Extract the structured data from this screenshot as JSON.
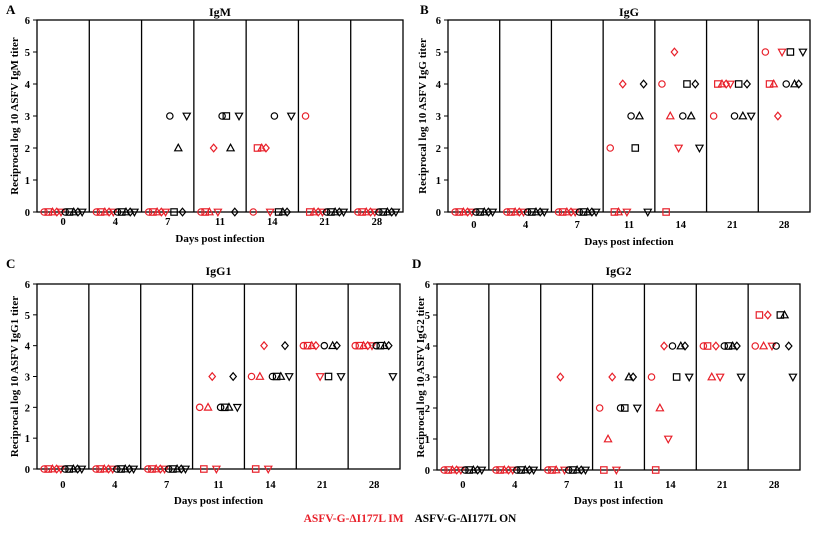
{
  "legend": {
    "im_label": "ASFV-G-ΔI177L IM",
    "on_label": "ASFV-G-ΔI177L ON",
    "im_color": "#e8202a",
    "on_color": "#000000"
  },
  "chart_data": [
    {
      "panel": "A",
      "type": "scatter",
      "title": "IgM",
      "xlabel": "Days post infection",
      "ylabel": "Reciprocal log 10 ASFV IgM titer",
      "ylim": [
        0,
        6
      ],
      "yticks": [
        0,
        1,
        2,
        3,
        4,
        5,
        6
      ],
      "categories": [
        "0",
        "4",
        "7",
        "11",
        "14",
        "21",
        "28"
      ],
      "shapes": [
        "circle",
        "square",
        "triangle-up",
        "diamond",
        "triangle-down"
      ],
      "series": [
        {
          "name": "ASFV-G-ΔI177L IM",
          "values": [
            [
              0,
              0,
              0,
              0,
              0
            ],
            [
              0,
              0,
              0,
              0,
              0
            ],
            [
              0,
              0,
              0,
              0,
              0
            ],
            [
              0,
              0,
              0,
              2,
              0
            ],
            [
              0,
              2,
              2,
              2,
              0
            ],
            [
              3,
              0,
              0,
              0,
              0
            ],
            [
              0,
              0,
              0,
              0,
              0
            ]
          ]
        },
        {
          "name": "ASFV-G-ΔI177L ON",
          "values": [
            [
              0,
              0,
              0,
              0,
              0
            ],
            [
              0,
              0,
              0,
              0,
              0
            ],
            [
              3,
              0,
              2,
              0,
              3
            ],
            [
              3,
              3,
              2,
              0,
              3
            ],
            [
              3,
              0,
              0,
              0,
              3
            ],
            [
              0,
              0,
              0,
              0,
              0
            ],
            [
              0,
              0,
              0,
              0,
              0
            ]
          ]
        }
      ]
    },
    {
      "panel": "B",
      "type": "scatter",
      "title": "IgG",
      "xlabel": "Days post infection",
      "ylabel": "Reciprocal log 10 ASFV IgG titer",
      "ylim": [
        0,
        6
      ],
      "yticks": [
        0,
        1,
        2,
        3,
        4,
        5,
        6
      ],
      "categories": [
        "0",
        "4",
        "7",
        "11",
        "14",
        "21",
        "28"
      ],
      "shapes": [
        "circle",
        "square",
        "triangle-up",
        "diamond",
        "triangle-down"
      ],
      "series": [
        {
          "name": "ASFV-G-ΔI177L IM",
          "values": [
            [
              0,
              0,
              0,
              0,
              0
            ],
            [
              0,
              0,
              0,
              0,
              0
            ],
            [
              0,
              0,
              0,
              0,
              0
            ],
            [
              2,
              0,
              0,
              4,
              0
            ],
            [
              4,
              0,
              3,
              5,
              2
            ],
            [
              3,
              4,
              4,
              4,
              4
            ],
            [
              5,
              4,
              4,
              3,
              5
            ]
          ]
        },
        {
          "name": "ASFV-G-ΔI177L ON",
          "values": [
            [
              0,
              0,
              0,
              0,
              0
            ],
            [
              0,
              0,
              0,
              0,
              0
            ],
            [
              0,
              0,
              0,
              0,
              0
            ],
            [
              3,
              2,
              3,
              4,
              0
            ],
            [
              3,
              4,
              3,
              4,
              2
            ],
            [
              3,
              4,
              3,
              4,
              3
            ],
            [
              4,
              5,
              4,
              4,
              5
            ]
          ]
        }
      ]
    },
    {
      "panel": "C",
      "type": "scatter",
      "title": "IgG1",
      "xlabel": "Days post infection",
      "ylabel": "Reciprocal log 10 ASFV IgG1 titer",
      "ylim": [
        0,
        6
      ],
      "yticks": [
        0,
        1,
        2,
        3,
        4,
        5,
        6
      ],
      "categories": [
        "0",
        "4",
        "7",
        "11",
        "14",
        "21",
        "28"
      ],
      "shapes": [
        "circle",
        "square",
        "triangle-up",
        "diamond",
        "triangle-down"
      ],
      "series": [
        {
          "name": "ASFV-G-ΔI177L IM",
          "values": [
            [
              0,
              0,
              0,
              0,
              0
            ],
            [
              0,
              0,
              0,
              0,
              0
            ],
            [
              0,
              0,
              0,
              0,
              0
            ],
            [
              2,
              0,
              2,
              3,
              0
            ],
            [
              3,
              0,
              3,
              4,
              0
            ],
            [
              4,
              4,
              4,
              4,
              3
            ],
            [
              4,
              4,
              4,
              4,
              4
            ]
          ]
        },
        {
          "name": "ASFV-G-ΔI177L ON",
          "values": [
            [
              0,
              0,
              0,
              0,
              0
            ],
            [
              0,
              0,
              0,
              0,
              0
            ],
            [
              0,
              0,
              0,
              0,
              0
            ],
            [
              2,
              2,
              2,
              3,
              2
            ],
            [
              3,
              3,
              3,
              4,
              3
            ],
            [
              4,
              3,
              4,
              4,
              3
            ],
            [
              4,
              4,
              4,
              4,
              3
            ]
          ]
        }
      ]
    },
    {
      "panel": "D",
      "type": "scatter",
      "title": "IgG2",
      "xlabel": "Days post infection",
      "ylabel": "Reciprocal log 10 ASFV IgG2 titer",
      "ylim": [
        0,
        6
      ],
      "yticks": [
        0,
        1,
        2,
        3,
        4,
        5,
        6
      ],
      "categories": [
        "0",
        "4",
        "7",
        "11",
        "14",
        "21",
        "28"
      ],
      "shapes": [
        "circle",
        "square",
        "triangle-up",
        "diamond",
        "triangle-down"
      ],
      "series": [
        {
          "name": "ASFV-G-ΔI177L IM",
          "values": [
            [
              0,
              0,
              0,
              0,
              0
            ],
            [
              0,
              0,
              0,
              0,
              0
            ],
            [
              0,
              0,
              0,
              3,
              0
            ],
            [
              2,
              0,
              1,
              3,
              0
            ],
            [
              3,
              0,
              2,
              4,
              1
            ],
            [
              4,
              4,
              3,
              4,
              3
            ],
            [
              4,
              5,
              4,
              5,
              4
            ]
          ]
        },
        {
          "name": "ASFV-G-ΔI177L ON",
          "values": [
            [
              0,
              0,
              0,
              0,
              0
            ],
            [
              0,
              0,
              0,
              0,
              0
            ],
            [
              0,
              0,
              0,
              0,
              0
            ],
            [
              2,
              2,
              3,
              3,
              2
            ],
            [
              4,
              3,
              4,
              4,
              3
            ],
            [
              4,
              4,
              4,
              4,
              3
            ],
            [
              4,
              5,
              5,
              4,
              3
            ]
          ]
        }
      ]
    }
  ]
}
